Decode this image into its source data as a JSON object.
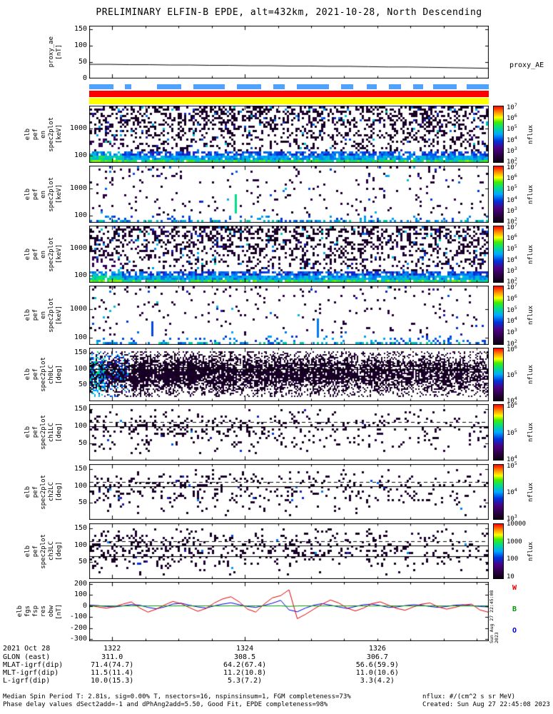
{
  "title": "PRELIMINARY ELFIN-B EPDE, alt=432km, 2021-10-28, North Descending",
  "colors": {
    "flag_blue": "#4da3ff",
    "flag_red": "#ff0000",
    "flag_yellow": "#ffff00",
    "axis": "#000000"
  },
  "flags": {
    "blue_segments": [
      [
        0,
        0.06
      ],
      [
        0.09,
        0.105
      ],
      [
        0.17,
        0.23
      ],
      [
        0.26,
        0.34
      ],
      [
        0.37,
        0.43
      ],
      [
        0.46,
        0.49
      ],
      [
        0.52,
        0.6
      ],
      [
        0.63,
        0.66
      ],
      [
        0.695,
        0.72
      ],
      [
        0.75,
        0.78
      ],
      [
        0.81,
        0.835
      ],
      [
        0.86,
        0.92
      ],
      [
        0.945,
        1.0
      ]
    ],
    "red_segments": [
      [
        0,
        1
      ]
    ],
    "yellow_segments": [
      [
        0,
        1
      ]
    ]
  },
  "right_labels": {
    "proxy": "proxy_AE",
    "fgs": [
      {
        "text": "W",
        "color": "#dd0000"
      },
      {
        "text": "B",
        "color": "#009900"
      },
      {
        "text": "O",
        "color": "#0000dd"
      }
    ]
  },
  "side_timestamp": "Sun Aug 27 22:45:08 2023",
  "xaxis": {
    "date_label": "2021 Oct 28",
    "ticks": [
      "1322",
      "1324",
      "1326"
    ],
    "rows": [
      {
        "label": "GLON (east)",
        "values": [
          "311.0",
          "308.5",
          "306.7"
        ]
      },
      {
        "label": "MLAT-igrf(dip)",
        "values": [
          "71.4(74.7)",
          "64.2(67.4)",
          "56.6(59.9)"
        ]
      },
      {
        "label": "MLT-igrf(dip)",
        "values": [
          "11.5(11.4)",
          "11.2(10.8)",
          "11.0(10.6)"
        ]
      },
      {
        "label": "L-igrf(dip)",
        "values": [
          "10.0(15.3)",
          "5.3(7.2)",
          "3.3(4.2)"
        ]
      }
    ]
  },
  "footer": {
    "line1": "Median Spin Period T: 2.81s, sig=0.00% T, nsectors=16, nspinsinsum=1, FGM completeness=73%",
    "line2": "Phase delay values dSect2add=-1 and dPhAng2add=5.50, Good Fit, EPDE completeness=98%",
    "nflux_units": "nflux: #/(cm^2 s sr MeV)",
    "created": "Created: Sun Aug 27 22:45:08 2023"
  },
  "chart_data": [
    {
      "id": "proxy_ae",
      "type": "line",
      "ylabel": [
        "proxy_ae",
        "[nT]"
      ],
      "ylim": [
        0,
        160
      ],
      "yticks": [
        0,
        50,
        100,
        150
      ],
      "series": [
        {
          "name": "proxy_AE",
          "color": "#000000",
          "values": [
            43,
            43,
            42,
            42,
            41,
            41,
            40,
            40,
            39,
            39,
            38,
            38,
            37,
            37,
            36,
            35,
            35,
            34,
            33,
            32,
            31
          ]
        }
      ]
    },
    {
      "id": "en1",
      "type": "heatmap",
      "style": "dense",
      "seed": 11,
      "ylabel": [
        "elb",
        "pef",
        "en",
        "spec2plot",
        "[keV]"
      ],
      "yscale": "log",
      "ylim": [
        55,
        7000
      ],
      "yticks": [
        100,
        1000
      ],
      "colorbar": {
        "label": "nflux",
        "ticks": [
          "10^7",
          "10^6",
          "10^5",
          "10^4",
          "10^3",
          "10^2"
        ]
      }
    },
    {
      "id": "en2",
      "type": "heatmap",
      "style": "sparse",
      "seed": 22,
      "ylabel": [
        "elb",
        "pef",
        "en",
        "spec2plot",
        "[keV]"
      ],
      "yscale": "log",
      "ylim": [
        55,
        7000
      ],
      "yticks": [
        100,
        1000
      ],
      "streaks": [
        {
          "x": 0.365,
          "y0": 0.5,
          "y1": 0.82,
          "v": 0.62
        }
      ],
      "colorbar": {
        "label": "nflux",
        "ticks": [
          "10^7",
          "10^6",
          "10^5",
          "10^4",
          "10^3",
          "10^2"
        ]
      }
    },
    {
      "id": "en3",
      "type": "heatmap",
      "style": "dense",
      "seed": 33,
      "ylabel": [
        "elb",
        "pef",
        "en",
        "spec2plot",
        "[keV]"
      ],
      "yscale": "log",
      "ylim": [
        55,
        7000
      ],
      "yticks": [
        100,
        1000
      ],
      "colorbar": {
        "label": "nflux",
        "ticks": [
          "10^7",
          "10^6",
          "10^5",
          "10^4",
          "10^3",
          "10^2"
        ]
      }
    },
    {
      "id": "en4",
      "type": "heatmap",
      "style": "sparse",
      "seed": 44,
      "ylabel": [
        "elb",
        "pef",
        "en",
        "spec2plot",
        "[keV]"
      ],
      "yscale": "log",
      "ylim": [
        55,
        7000
      ],
      "yticks": [
        100,
        1000
      ],
      "streaks": [
        {
          "x": 0.57,
          "y0": 0.55,
          "y1": 0.85,
          "v": 0.45
        },
        {
          "x": 0.155,
          "y0": 0.6,
          "y1": 0.82,
          "v": 0.4
        }
      ],
      "colorbar": {
        "label": "nflux",
        "ticks": [
          "10^7",
          "10^6",
          "10^5",
          "10^4",
          "10^3",
          "10^2"
        ]
      }
    },
    {
      "id": "ch0",
      "type": "heatmap",
      "style": "pa-dense",
      "seed": 5,
      "ylabel": [
        "elb",
        "pef",
        "spec2plot",
        "ch0LC",
        "[deg]"
      ],
      "ylim": [
        0,
        165
      ],
      "yticks": [
        50,
        100,
        150
      ],
      "lines": [
        {
          "v": 100,
          "dash": false
        },
        {
          "v": 113,
          "dash": true
        }
      ],
      "colorbar": {
        "label": "nflux",
        "ticks": [
          "10^6",
          "10^5",
          "10^4"
        ]
      }
    },
    {
      "id": "ch1",
      "type": "heatmap",
      "style": "pa-sparse",
      "seed": 6,
      "density": 0.17,
      "ylabel": [
        "elb",
        "pef",
        "spec2plot",
        "ch1LC",
        "[deg]"
      ],
      "ylim": [
        0,
        165
      ],
      "yticks": [
        50,
        100,
        150
      ],
      "lines": [
        {
          "v": 100,
          "dash": false
        },
        {
          "v": 113,
          "dash": true
        }
      ],
      "colorbar": {
        "label": "nflux",
        "ticks": [
          "10^6",
          "10^5",
          "10^4"
        ]
      }
    },
    {
      "id": "ch2",
      "type": "heatmap",
      "style": "pa-sparse",
      "seed": 7,
      "density": 0.13,
      "ylabel": [
        "elb",
        "pef",
        "spec2plot",
        "ch2LC",
        "[deg]"
      ],
      "ylim": [
        0,
        165
      ],
      "yticks": [
        50,
        100,
        150
      ],
      "lines": [
        {
          "v": 100,
          "dash": false
        },
        {
          "v": 113,
          "dash": true
        }
      ],
      "colorbar": {
        "label": "nflux",
        "ticks": [
          "10^5",
          "10^4",
          "10^3"
        ]
      }
    },
    {
      "id": "ch3",
      "type": "heatmap",
      "style": "pa-sparse",
      "seed": 8,
      "density": 0.2,
      "ylabel": [
        "elb",
        "pef",
        "spec2plot",
        "ch3LC",
        "[deg]"
      ],
      "ylim": [
        0,
        165
      ],
      "yticks": [
        50,
        100,
        150
      ],
      "lines": [
        {
          "v": 100,
          "dash": false
        },
        {
          "v": 68,
          "dash": false
        },
        {
          "v": 113,
          "dash": true
        }
      ],
      "colorbar": {
        "label": "nflux",
        "ticks": [
          "10000",
          "1000",
          "100",
          "10"
        ]
      }
    },
    {
      "id": "fgs",
      "type": "line",
      "ylabel": [
        "elb",
        "fgs",
        "fsp",
        "res",
        "obw",
        "[nT]"
      ],
      "ylim": [
        -320,
        220
      ],
      "yticks": [
        -300,
        -200,
        -100,
        0,
        100,
        200
      ],
      "series": [
        {
          "name": "O",
          "color": "#0000dd",
          "values": [
            8,
            4,
            -4,
            -8,
            2,
            14,
            8,
            -12,
            -25,
            -8,
            18,
            26,
            8,
            -8,
            -18,
            2,
            18,
            30,
            12,
            -4,
            -12,
            6,
            26,
            52,
            -35,
            -52,
            -18,
            8,
            22,
            8,
            -8,
            -22,
            -4,
            12,
            18,
            4,
            -12,
            -8,
            4,
            12,
            8,
            -4,
            -12,
            -4,
            8,
            12,
            4,
            -4,
            -8
          ]
        },
        {
          "name": "W",
          "color": "#dd0000",
          "values": [
            5,
            -8,
            -20,
            -4,
            18,
            38,
            -18,
            -55,
            -28,
            10,
            42,
            22,
            -14,
            -48,
            -22,
            28,
            65,
            85,
            38,
            -28,
            -55,
            18,
            75,
            95,
            148,
            -115,
            -75,
            -28,
            18,
            55,
            28,
            -18,
            -45,
            -18,
            22,
            38,
            8,
            -22,
            -38,
            -8,
            18,
            28,
            -8,
            -28,
            -12,
            8,
            18,
            -35,
            -55
          ]
        },
        {
          "name": "B",
          "color": "#009900",
          "values": [
            2,
            1,
            2,
            1,
            1,
            2,
            1,
            1,
            2,
            1,
            1,
            2,
            1,
            1,
            2,
            1,
            1,
            2,
            1,
            1,
            2,
            1,
            1,
            2,
            -3,
            1,
            2,
            1,
            1,
            2,
            1,
            1,
            2,
            1,
            1,
            2,
            1,
            1,
            2,
            1,
            1,
            2,
            1,
            1,
            2,
            1,
            1,
            2,
            1
          ]
        }
      ]
    }
  ]
}
